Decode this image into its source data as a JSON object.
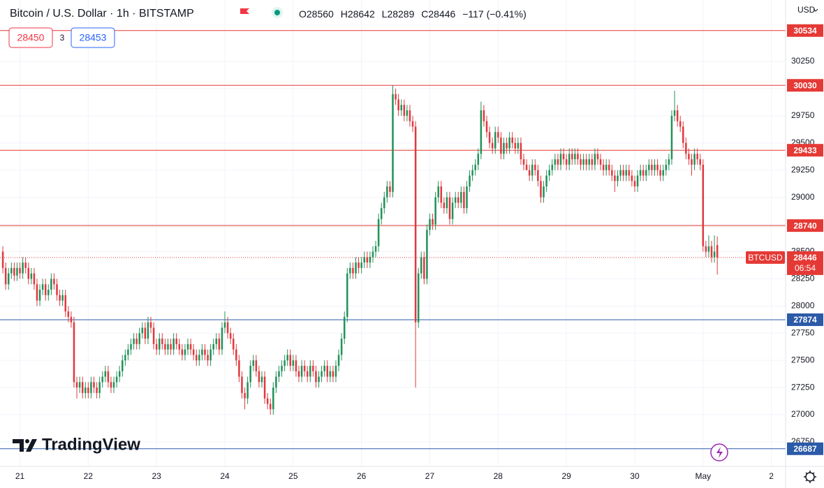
{
  "header": {
    "title": "Bitcoin / U.S. Dollar · 1h · BITSTAMP",
    "ohlc": [
      "O28560",
      "H28642",
      "L28289",
      "C28446",
      "−117 (−0.41%)"
    ]
  },
  "trade": {
    "sell": 28450,
    "spread": 3,
    "buy": 28453
  },
  "currency": "USD",
  "brand": "TradingView",
  "chart_data": {
    "type": "candlestick",
    "up_color": "#22925a",
    "down_color": "#e0393e",
    "grid": true,
    "x": [
      -6,
      -5,
      -4,
      -3,
      -2,
      -1,
      0,
      1,
      2,
      3,
      4,
      5,
      6,
      7,
      8,
      9,
      10,
      11,
      12,
      13,
      14,
      15,
      16,
      17,
      18,
      19,
      20,
      21,
      22,
      23,
      24,
      25,
      26,
      27,
      28,
      29,
      30,
      31,
      32,
      33,
      34,
      35,
      36,
      37,
      38,
      39,
      40,
      41,
      42,
      43,
      44,
      45,
      46,
      47,
      48,
      49,
      50,
      51,
      52,
      53,
      54,
      55,
      56,
      57,
      58,
      59,
      60,
      61,
      62,
      63,
      64,
      65,
      66,
      67,
      68,
      69,
      70,
      71,
      72,
      73,
      74,
      75,
      76,
      77,
      78,
      79,
      80,
      81,
      82,
      83,
      84,
      85,
      86,
      87,
      88,
      89,
      90,
      91,
      92,
      93,
      94,
      95,
      96,
      97,
      98,
      99,
      100,
      101,
      102,
      103,
      104,
      105,
      106,
      107,
      108,
      109,
      110,
      111,
      112,
      113,
      114,
      115,
      116,
      117,
      118,
      119,
      120,
      121,
      122,
      123,
      124,
      125,
      126,
      127,
      128,
      129,
      130,
      131,
      132,
      133,
      134,
      135,
      136,
      137,
      138,
      139,
      140,
      141,
      142,
      143,
      144,
      145,
      146,
      147,
      148,
      149,
      150,
      151,
      152,
      153,
      154,
      155,
      156,
      157,
      158,
      159,
      160,
      161,
      162,
      163,
      164,
      165,
      166,
      167,
      168,
      169,
      170,
      171,
      172,
      173,
      174,
      175,
      176,
      177,
      178,
      179,
      180,
      181,
      182,
      183,
      184,
      185,
      186,
      187,
      188,
      189,
      190,
      191,
      192,
      193,
      194,
      195,
      196,
      197,
      198,
      199,
      200,
      201,
      202,
      203,
      204,
      205,
      206,
      207,
      208,
      209,
      210,
      211,
      212,
      213,
      214,
      215,
      216,
      217,
      218,
      219,
      220,
      221,
      222,
      223,
      224,
      225,
      226,
      227,
      228,
      229,
      230,
      231,
      232,
      233,
      234,
      235,
      236,
      237,
      238,
      239,
      240,
      241,
      242,
      243,
      244,
      245
    ],
    "open": [
      28500,
      28350,
      28200,
      28300,
      28350,
      28280,
      28350,
      28300,
      28400,
      28350,
      28250,
      28300,
      28200,
      28050,
      28150,
      28200,
      28100,
      28150,
      28250,
      28200,
      28100,
      28050,
      28100,
      27950,
      27900,
      27850,
      27300,
      27250,
      27300,
      27200,
      27250,
      27200,
      27300,
      27250,
      27200,
      27300,
      27350,
      27400,
      27300,
      27250,
      27300,
      27350,
      27400,
      27500,
      27550,
      27600,
      27650,
      27700,
      27650,
      27750,
      27800,
      27700,
      27850,
      27800,
      27650,
      27600,
      27700,
      27650,
      27600,
      27650,
      27600,
      27700,
      27650,
      27600,
      27550,
      27600,
      27650,
      27600,
      27550,
      27500,
      27550,
      27600,
      27550,
      27500,
      27600,
      27650,
      27700,
      27600,
      27800,
      27850,
      27750,
      27700,
      27600,
      27500,
      27350,
      27200,
      27150,
      27300,
      27450,
      27500,
      27400,
      27300,
      27350,
      27150,
      27100,
      27050,
      27250,
      27350,
      27400,
      27450,
      27500,
      27550,
      27450,
      27500,
      27400,
      27350,
      27450,
      27400,
      27350,
      27450,
      27400,
      27300,
      27350,
      27400,
      27450,
      27350,
      27400,
      27350,
      27450,
      27550,
      27700,
      27900,
      28300,
      28350,
      28300,
      28400,
      28350,
      28400,
      28450,
      28400,
      28450,
      28500,
      28550,
      28800,
      28900,
      29000,
      29100,
      29050,
      29950,
      29900,
      29800,
      29850,
      29750,
      29800,
      29700,
      29650,
      27850,
      28300,
      28450,
      28250,
      28700,
      28800,
      28750,
      29000,
      29100,
      28950,
      28900,
      29000,
      28800,
      28950,
      29000,
      28950,
      29050,
      28900,
      29100,
      29200,
      29250,
      29300,
      29400,
      29800,
      29700,
      29600,
      29500,
      29450,
      29600,
      29550,
      29400,
      29500,
      29450,
      29550,
      29500,
      29450,
      29500,
      29350,
      29300,
      29250,
      29200,
      29300,
      29250,
      29150,
      29000,
      29100,
      29200,
      29250,
      29300,
      29350,
      29300,
      29400,
      29350,
      29300,
      29400,
      29350,
      29400,
      29350,
      29300,
      29350,
      29300,
      29350,
      29300,
      29400,
      29350,
      29300,
      29250,
      29300,
      29250,
      29200,
      29150,
      29200,
      29250,
      29200,
      29250,
      29200,
      29150,
      29100,
      29200,
      29250,
      29200,
      29250,
      29300,
      29250,
      29300,
      29250,
      29200,
      29250,
      29300,
      29350,
      29750,
      29800,
      29700,
      29650,
      29500,
      29400,
      29350,
      29300,
      29400,
      29350,
      29300,
      28550,
      28500,
      28550,
      28450,
      28560
    ],
    "high": [
      28550,
      28400,
      28350,
      28400,
      28400,
      28400,
      28400,
      28450,
      28450,
      28400,
      28350,
      28350,
      28250,
      28200,
      28250,
      28250,
      28200,
      28300,
      28300,
      28250,
      28150,
      28150,
      28150,
      28000,
      27950,
      27900,
      27350,
      27350,
      27350,
      27300,
      27300,
      27350,
      27350,
      27300,
      27350,
      27400,
      27450,
      27450,
      27350,
      27350,
      27400,
      27450,
      27550,
      27600,
      27650,
      27700,
      27750,
      27750,
      27800,
      27850,
      27850,
      27900,
      27900,
      27850,
      27700,
      27750,
      27750,
      27700,
      27700,
      27700,
      27750,
      27750,
      27700,
      27650,
      27650,
      27700,
      27700,
      27650,
      27600,
      27600,
      27650,
      27650,
      27600,
      27650,
      27700,
      27750,
      27750,
      27850,
      27950,
      27900,
      27800,
      27750,
      27650,
      27550,
      27400,
      27250,
      27350,
      27500,
      27550,
      27550,
      27450,
      27400,
      27400,
      27200,
      27150,
      27300,
      27400,
      27450,
      27500,
      27550,
      27600,
      27600,
      27550,
      27550,
      27450,
      27500,
      27500,
      27450,
      27500,
      27500,
      27450,
      27400,
      27450,
      27500,
      27500,
      27450,
      27450,
      27500,
      27600,
      27750,
      27950,
      28350,
      28400,
      28400,
      28450,
      28450,
      28450,
      28500,
      28500,
      28500,
      28550,
      28600,
      28850,
      28950,
      29050,
      29150,
      29150,
      30030,
      30000,
      29950,
      29900,
      29900,
      29850,
      29850,
      29750,
      29700,
      28350,
      28500,
      28500,
      28750,
      28850,
      28850,
      29050,
      29150,
      29150,
      29000,
      29050,
      29050,
      29000,
      29050,
      29050,
      29100,
      29100,
      29150,
      29250,
      29300,
      29350,
      29450,
      29880,
      29850,
      29750,
      29650,
      29550,
      29650,
      29650,
      29600,
      29550,
      29550,
      29600,
      29600,
      29550,
      29550,
      29550,
      29400,
      29350,
      29300,
      29350,
      29350,
      29300,
      29200,
      29150,
      29250,
      29300,
      29350,
      29400,
      29400,
      29450,
      29450,
      29400,
      29450,
      29450,
      29450,
      29450,
      29400,
      29400,
      29400,
      29400,
      29400,
      29450,
      29450,
      29400,
      29350,
      29350,
      29350,
      29300,
      29250,
      29250,
      29300,
      29300,
      29300,
      29300,
      29250,
      29200,
      29250,
      29300,
      29300,
      29300,
      29350,
      29350,
      29350,
      29350,
      29300,
      29300,
      29350,
      29400,
      29800,
      29980,
      29850,
      29750,
      29700,
      29550,
      29450,
      29400,
      29450,
      29450,
      29400,
      29350,
      28600,
      28650,
      28600,
      28650,
      28642
    ],
    "low": [
      28300,
      28150,
      28150,
      28250,
      28230,
      28230,
      28250,
      28250,
      28300,
      28200,
      28200,
      28150,
      28000,
      28000,
      28100,
      28050,
      28050,
      28100,
      28150,
      28050,
      28000,
      28000,
      27900,
      27850,
      27800,
      27250,
      27150,
      27200,
      27150,
      27150,
      27150,
      27150,
      27200,
      27150,
      27150,
      27250,
      27300,
      27250,
      27200,
      27200,
      27250,
      27300,
      27350,
      27450,
      27500,
      27550,
      27600,
      27600,
      27600,
      27700,
      27650,
      27650,
      27750,
      27600,
      27550,
      27550,
      27600,
      27550,
      27550,
      27550,
      27550,
      27600,
      27550,
      27500,
      27500,
      27550,
      27550,
      27500,
      27450,
      27450,
      27500,
      27500,
      27450,
      27450,
      27550,
      27600,
      27550,
      27550,
      27750,
      27700,
      27650,
      27550,
      27450,
      27300,
      27150,
      27050,
      27100,
      27250,
      27400,
      27350,
      27250,
      27250,
      27100,
      27050,
      27000,
      27000,
      27200,
      27300,
      27350,
      27400,
      27450,
      27400,
      27400,
      27350,
      27300,
      27300,
      27350,
      27300,
      27300,
      27350,
      27250,
      27250,
      27300,
      27350,
      27300,
      27300,
      27300,
      27300,
      27400,
      27500,
      27650,
      27850,
      28250,
      28250,
      28250,
      28300,
      28300,
      28350,
      28350,
      28350,
      28400,
      28450,
      28500,
      28750,
      28850,
      28950,
      29000,
      29000,
      29850,
      29750,
      29750,
      29700,
      29700,
      29650,
      29600,
      27250,
      27800,
      28250,
      28200,
      28200,
      28650,
      28700,
      28700,
      28950,
      28900,
      28850,
      28850,
      28750,
      28750,
      28900,
      28900,
      28900,
      28850,
      28850,
      29050,
      29150,
      29200,
      29250,
      29350,
      29650,
      29550,
      29450,
      29400,
      29400,
      29500,
      29350,
      29350,
      29400,
      29400,
      29450,
      29400,
      29400,
      29300,
      29250,
      29250,
      29150,
      29150,
      29200,
      29100,
      28950,
      28950,
      29050,
      29150,
      29200,
      29250,
      29250,
      29250,
      29300,
      29250,
      29250,
      29300,
      29300,
      29300,
      29250,
      29250,
      29250,
      29250,
      29250,
      29250,
      29300,
      29250,
      29200,
      29200,
      29200,
      29150,
      29050,
      29100,
      29150,
      29150,
      29150,
      29150,
      29100,
      29050,
      29050,
      29150,
      29150,
      29150,
      29200,
      29200,
      29200,
      29200,
      29150,
      29150,
      29200,
      29250,
      29300,
      29700,
      29650,
      29600,
      29450,
      29350,
      29300,
      29200,
      29250,
      29300,
      29250,
      28500,
      28450,
      28450,
      28400,
      28400,
      28289
    ],
    "close": [
      28350,
      28200,
      28300,
      28350,
      28280,
      28350,
      28300,
      28400,
      28350,
      28250,
      28300,
      28200,
      28050,
      28150,
      28200,
      28100,
      28150,
      28250,
      28200,
      28100,
      28050,
      28100,
      27950,
      27900,
      27850,
      27300,
      27250,
      27300,
      27200,
      27250,
      27200,
      27300,
      27250,
      27200,
      27300,
      27350,
      27400,
      27300,
      27250,
      27300,
      27350,
      27400,
      27500,
      27550,
      27600,
      27650,
      27700,
      27650,
      27750,
      27800,
      27700,
      27850,
      27800,
      27650,
      27600,
      27700,
      27650,
      27600,
      27650,
      27600,
      27700,
      27650,
      27600,
      27550,
      27600,
      27650,
      27600,
      27550,
      27500,
      27550,
      27600,
      27550,
      27500,
      27600,
      27650,
      27700,
      27600,
      27800,
      27850,
      27750,
      27700,
      27600,
      27500,
      27350,
      27200,
      27150,
      27300,
      27450,
      27500,
      27400,
      27300,
      27350,
      27150,
      27100,
      27050,
      27250,
      27350,
      27400,
      27450,
      27500,
      27550,
      27450,
      27500,
      27400,
      27350,
      27450,
      27400,
      27350,
      27450,
      27400,
      27300,
      27350,
      27400,
      27450,
      27350,
      27400,
      27350,
      27450,
      27550,
      27700,
      27900,
      28300,
      28350,
      28300,
      28400,
      28350,
      28400,
      28450,
      28400,
      28450,
      28500,
      28550,
      28800,
      28900,
      29000,
      29100,
      29050,
      29950,
      29900,
      29800,
      29850,
      29750,
      29800,
      29700,
      29650,
      27850,
      28300,
      28450,
      28250,
      28700,
      28800,
      28750,
      29000,
      29100,
      28950,
      28900,
      29000,
      28800,
      28950,
      29000,
      28950,
      29050,
      28900,
      29100,
      29200,
      29250,
      29300,
      29400,
      29800,
      29700,
      29600,
      29500,
      29450,
      29600,
      29550,
      29400,
      29500,
      29450,
      29550,
      29500,
      29450,
      29500,
      29350,
      29300,
      29250,
      29200,
      29300,
      29250,
      29150,
      29000,
      29100,
      29200,
      29250,
      29300,
      29350,
      29300,
      29400,
      29350,
      29300,
      29400,
      29350,
      29400,
      29350,
      29300,
      29350,
      29300,
      29350,
      29300,
      29400,
      29350,
      29300,
      29250,
      29300,
      29250,
      29200,
      29150,
      29200,
      29250,
      29200,
      29250,
      29200,
      29150,
      29100,
      29200,
      29250,
      29200,
      29250,
      29300,
      29250,
      29300,
      29250,
      29200,
      29250,
      29300,
      29350,
      29750,
      29800,
      29700,
      29650,
      29500,
      29400,
      29350,
      29300,
      29400,
      29350,
      29300,
      28550,
      28500,
      28550,
      28450,
      28500,
      28446
    ],
    "xlim": [
      -7,
      269
    ],
    "xticks": [
      {
        "value": 0,
        "label": "21"
      },
      {
        "value": 24,
        "label": "22"
      },
      {
        "value": 48,
        "label": "23"
      },
      {
        "value": 72,
        "label": "24"
      },
      {
        "value": 96,
        "label": "25"
      },
      {
        "value": 120,
        "label": "26"
      },
      {
        "value": 144,
        "label": "27"
      },
      {
        "value": 168,
        "label": "28"
      },
      {
        "value": 192,
        "label": "29"
      },
      {
        "value": 216,
        "label": "30"
      },
      {
        "value": 240,
        "label": "May"
      },
      {
        "value": 264,
        "label": "2"
      }
    ],
    "ylim": [
      26525,
      30815
    ],
    "yticks": [
      26750,
      27000,
      27250,
      27500,
      27750,
      28000,
      28250,
      28500,
      28750,
      29000,
      29250,
      29500,
      29750,
      30000,
      30250
    ],
    "levels": [
      {
        "value": 30534,
        "color": "#e53935"
      },
      {
        "value": 30030,
        "color": "#e53935"
      },
      {
        "value": 29433,
        "color": "#e53935"
      },
      {
        "value": 28740,
        "color": "#e53935"
      },
      {
        "value": 27874,
        "color": "#2a5aa8"
      },
      {
        "value": 26687,
        "color": "#2a5aa8"
      }
    ],
    "last_price": {
      "name": "BTCUSD",
      "value": 28446,
      "countdown": "06:54",
      "color": "#e53935"
    }
  }
}
